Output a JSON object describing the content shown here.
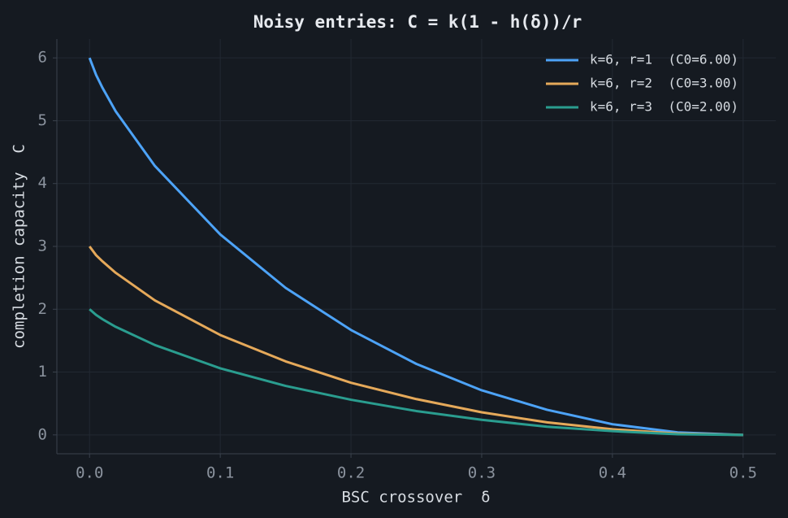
{
  "chart_data": {
    "type": "line",
    "title": "Noisy entries: C = k(1 - h(δ))/r",
    "x_label": "BSC crossover  δ",
    "y_label": "completion capacity  C",
    "x": [
      0,
      0.005,
      0.01,
      0.02,
      0.05,
      0.1,
      0.15,
      0.2,
      0.25,
      0.3,
      0.35,
      0.4,
      0.45,
      0.5
    ],
    "series": [
      {
        "name": "k=6, r=1  (C0=6.00)",
        "color": "#4da3f7",
        "values": [
          6,
          5.73,
          5.52,
          5.15,
          4.28,
          3.19,
          2.34,
          1.67,
          1.13,
          0.71,
          0.4,
          0.17,
          0.04,
          0
        ]
      },
      {
        "name": "k=6, r=2  (C0=3.00)",
        "color": "#e5a95a",
        "values": [
          3,
          2.86,
          2.76,
          2.58,
          2.14,
          1.59,
          1.17,
          0.83,
          0.57,
          0.36,
          0.2,
          0.09,
          0.02,
          0
        ]
      },
      {
        "name": "k=6, r=3  (C0=2.00)",
        "color": "#2a9d8f",
        "values": [
          2,
          1.91,
          1.84,
          1.72,
          1.43,
          1.06,
          0.78,
          0.56,
          0.38,
          0.24,
          0.13,
          0.06,
          0.01,
          0
        ]
      }
    ],
    "xlim": [
      -0.025,
      0.525
    ],
    "ylim": [
      -0.3,
      6.3
    ],
    "xticks": [
      {
        "value": 0,
        "label": "0.0"
      },
      0.1,
      0.2,
      0.3,
      0.4,
      0.5
    ],
    "yticks": [
      0,
      1,
      2,
      3,
      4,
      5,
      6
    ],
    "grid": true,
    "legend": "upper right"
  }
}
